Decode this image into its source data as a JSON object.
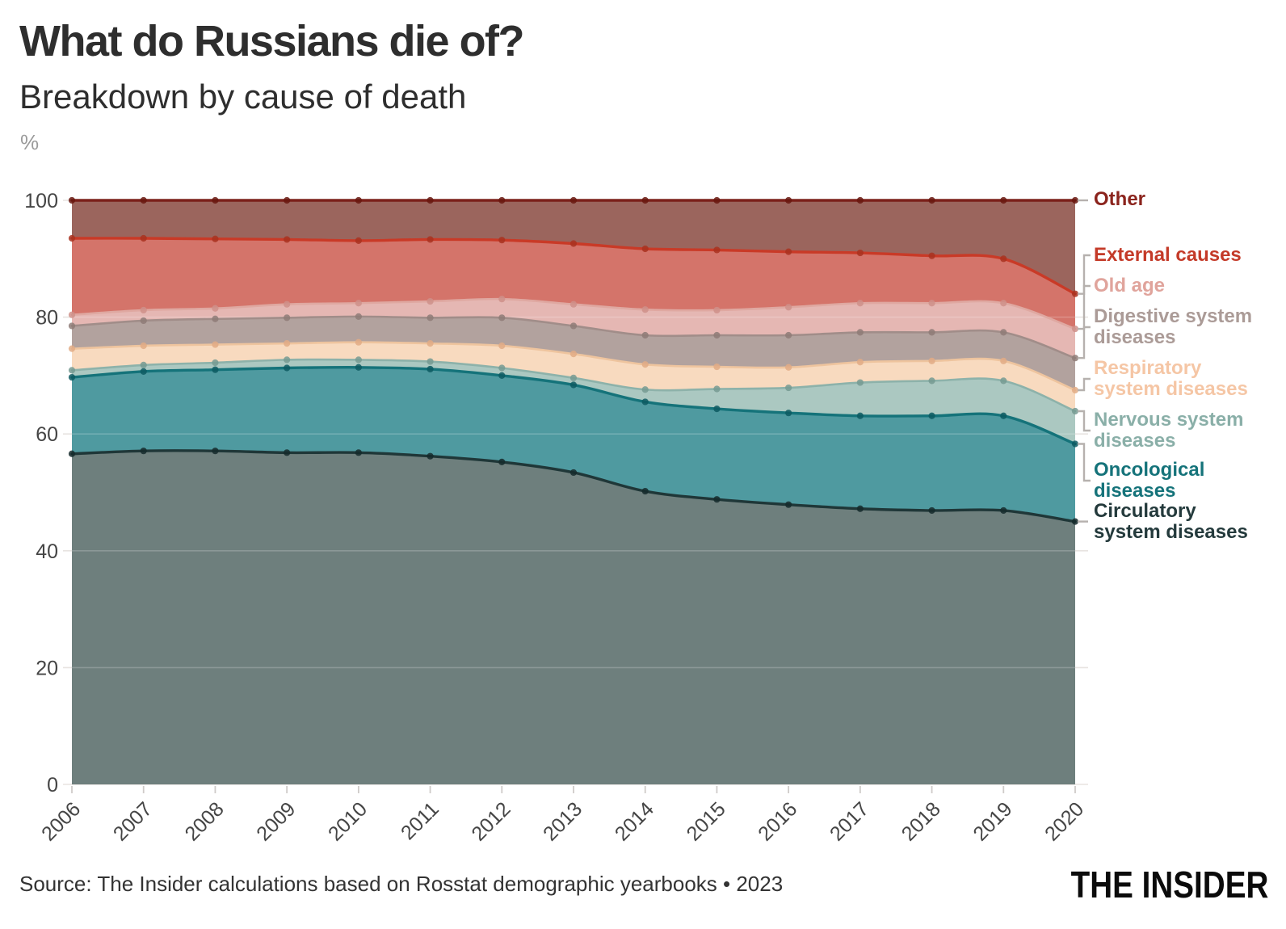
{
  "chart_data": {
    "type": "area",
    "stacked": true,
    "units": "percent of all deaths",
    "title": "What do Russians die of?",
    "subtitle": "Breakdown by cause of death",
    "ylabel": "%",
    "ylim": [
      0,
      100
    ],
    "yticks": [
      0,
      20,
      40,
      60,
      80,
      100
    ],
    "grid": "horizontal",
    "legend_position": "right",
    "x": [
      2006,
      2007,
      2008,
      2009,
      2010,
      2011,
      2012,
      2013,
      2014,
      2015,
      2016,
      2017,
      2018,
      2019,
      2020
    ],
    "series": [
      {
        "name": "Circulatory system diseases",
        "values": [
          56.6,
          57.1,
          57.1,
          56.8,
          56.8,
          56.2,
          55.2,
          53.4,
          50.2,
          48.8,
          47.9,
          47.2,
          46.9,
          46.9,
          45.0
        ],
        "line": "#1f3738",
        "fill": "#6e7f7d",
        "dot": "#152a2b",
        "label_color": "#243a3c",
        "line_width": 3.4
      },
      {
        "name": "Oncological diseases",
        "values": [
          13.1,
          13.6,
          13.9,
          14.5,
          14.6,
          14.9,
          14.8,
          15.0,
          15.3,
          15.5,
          15.7,
          15.9,
          16.2,
          16.2,
          13.3
        ],
        "line": "#15737a",
        "fill": "#4f9aa0",
        "dot": "#0d5b62",
        "label_color": "#15737a",
        "line_width": 3.4
      },
      {
        "name": "Nervous system diseases",
        "values": [
          1.2,
          1.1,
          1.2,
          1.4,
          1.3,
          1.3,
          1.3,
          1.2,
          2.1,
          3.4,
          4.3,
          5.7,
          6.0,
          6.0,
          5.6
        ],
        "line": "#8db2aa",
        "fill": "#abc8c1",
        "dot": "#759a92",
        "label_color": "#8aafa8",
        "line_width": 2.6
      },
      {
        "name": "Respiratory system diseases",
        "values": [
          3.7,
          3.3,
          3.1,
          2.8,
          3.0,
          3.1,
          3.8,
          4.1,
          4.3,
          3.8,
          3.5,
          3.5,
          3.4,
          3.4,
          3.6
        ],
        "line": "#eec49e",
        "fill": "#f8dabf",
        "dot": "#e2ac85",
        "label_color": "#f5c6a5",
        "line_width": 2.6
      },
      {
        "name": "Digestive system diseases",
        "values": [
          3.9,
          4.3,
          4.4,
          4.4,
          4.4,
          4.4,
          4.8,
          4.8,
          5.0,
          5.4,
          5.5,
          5.1,
          4.9,
          4.9,
          5.5
        ],
        "line": "#a18d89",
        "fill": "#b2a29e",
        "dot": "#8e7b77",
        "label_color": "#ab9b97",
        "line_width": 2.6
      },
      {
        "name": "Old age",
        "values": [
          1.9,
          1.8,
          1.8,
          2.3,
          2.3,
          2.8,
          3.2,
          3.7,
          4.4,
          4.3,
          4.8,
          5.0,
          5.0,
          5.0,
          5.0
        ],
        "line": "#dfa8a1",
        "fill": "#e5b7b3",
        "dot": "#cf908a",
        "label_color": "#e0a49c",
        "line_width": 2.6
      },
      {
        "name": "External causes",
        "values": [
          13.1,
          12.3,
          11.9,
          11.1,
          10.7,
          10.6,
          10.1,
          10.4,
          10.4,
          10.3,
          9.5,
          8.6,
          8.1,
          7.6,
          6.0
        ],
        "line": "#c93a27",
        "fill": "#d4746a",
        "dot": "#a93320",
        "label_color": "#c43a28",
        "line_width": 3.4
      },
      {
        "name": "Other",
        "values": [
          6.5,
          6.5,
          6.6,
          6.7,
          6.9,
          6.7,
          6.8,
          7.4,
          8.3,
          8.5,
          8.8,
          9.0,
          9.5,
          10.0,
          16.0
        ],
        "line": "#7b201a",
        "fill": "#9b655d",
        "dot": "#69170f",
        "label_color": "#8b241d",
        "line_width": 3.4
      }
    ],
    "legend": [
      {
        "series": "Other",
        "label_lines": [
          "Other"
        ],
        "color": "#8b241d"
      },
      {
        "series": "External causes",
        "label_lines": [
          "External causes"
        ],
        "color": "#c43a28"
      },
      {
        "series": "Old age",
        "label_lines": [
          "Old age"
        ],
        "color": "#e0a49c"
      },
      {
        "series": "Digestive system diseases",
        "label_lines": [
          "Digestive system",
          "diseases"
        ],
        "color": "#ab9b97"
      },
      {
        "series": "Respiratory system diseases",
        "label_lines": [
          "Respiratory",
          "system diseases"
        ],
        "color": "#f5c6a5"
      },
      {
        "series": "Nervous system diseases",
        "label_lines": [
          "Nervous system",
          "diseases"
        ],
        "color": "#8aafa8"
      },
      {
        "series": "Oncological diseases",
        "label_lines": [
          "Oncological",
          "diseases"
        ],
        "color": "#15737a"
      },
      {
        "series": "Circulatory system diseases",
        "label_lines": [
          "Circulatory",
          "system diseases"
        ],
        "color": "#243a3c"
      }
    ]
  },
  "footer": {
    "source": "Source: The Insider calculations based on Rosstat demographic yearbooks • 2023",
    "logo": "THE INSIDER"
  },
  "colors": {
    "background": "#ffffff",
    "axis_text": "#454545",
    "grid": "#e8e4e1",
    "grid_overlay": "rgba(255,255,255,0.20)",
    "tick": "#cfcbc9",
    "connector": "#b6b1ae"
  }
}
